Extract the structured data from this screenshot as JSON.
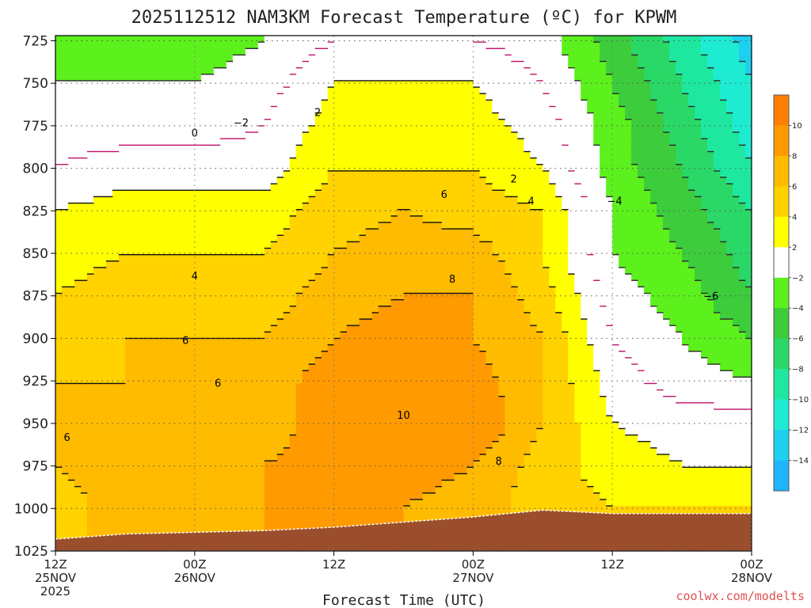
{
  "title": "2025112512 NAM3KM Forecast Temperature (ºC) for KPWM",
  "credit": "coolwx.com/modelts",
  "colors": {
    "lt_m14": "#1fb4ff",
    "m14_m12": "#1ed0f0",
    "m12_m10": "#1eecd2",
    "m10_m8": "#1ee8a0",
    "m8_m6": "#2ad868",
    "m6_m4": "#3ccc3c",
    "m4_m2": "#5cf01c",
    "m2_2": "#ffffff",
    "2_4": "#ffff00",
    "4_6": "#ffd200",
    "6_8": "#ffbb00",
    "8_10": "#ff9a00",
    "10_12": "#ff8000",
    "terrain": "#9b4e2c",
    "zero_line": "#c0106a"
  },
  "chart_data": {
    "type": "heatmap",
    "title": "2025112512 NAM3KM Forecast Temperature (ºC) for KPWM",
    "xlabel": "Forecast Time (UTC)",
    "ylabel": "",
    "x_axis": {
      "min_hour": 0,
      "max_hour": 60,
      "ticks": [
        {
          "hour": 0,
          "lines": [
            "12Z",
            "25NOV",
            "2025"
          ]
        },
        {
          "hour": 12,
          "lines": [
            "00Z",
            "26NOV"
          ]
        },
        {
          "hour": 24,
          "lines": [
            "12Z"
          ]
        },
        {
          "hour": 36,
          "lines": [
            "00Z",
            "27NOV"
          ]
        },
        {
          "hour": 48,
          "lines": [
            "12Z"
          ]
        },
        {
          "hour": 60,
          "lines": [
            "00Z",
            "28NOV"
          ]
        }
      ]
    },
    "y_axis": {
      "unit": "hPa",
      "inverted": true,
      "min": 722,
      "max": 1025,
      "ticks": [
        725,
        750,
        775,
        800,
        825,
        850,
        875,
        900,
        925,
        950,
        975,
        1000,
        1025
      ]
    },
    "grid": true,
    "colorbar": {
      "placement": "right",
      "labels": [
        "10",
        "8",
        "6",
        "4",
        "2",
        "−2",
        "−4",
        "−6",
        "−8",
        "−10",
        "−12",
        "−14"
      ]
    },
    "contour_labels": [
      {
        "text": "0",
        "hour": 12.0,
        "p": 779
      },
      {
        "text": "−2",
        "hour": 16.0,
        "p": 773
      },
      {
        "text": "2",
        "hour": 22.6,
        "p": 767
      },
      {
        "text": "2",
        "hour": 39.5,
        "p": 806
      },
      {
        "text": "4",
        "hour": 41.0,
        "p": 819
      },
      {
        "text": "6",
        "hour": 33.5,
        "p": 815
      },
      {
        "text": "4",
        "hour": 12.0,
        "p": 863
      },
      {
        "text": "8",
        "hour": 34.2,
        "p": 865
      },
      {
        "text": "6",
        "hour": 11.2,
        "p": 901
      },
      {
        "text": "6",
        "hour": 14.0,
        "p": 926
      },
      {
        "text": "6",
        "hour": 1.0,
        "p": 958
      },
      {
        "text": "10",
        "hour": 30.0,
        "p": 945
      },
      {
        "text": "8",
        "hour": 38.2,
        "p": 972
      },
      {
        "text": "−4",
        "hour": 48.2,
        "p": 819
      },
      {
        "text": "−6",
        "hour": 56.5,
        "p": 875
      }
    ],
    "forecast_temperatures_c": {
      "hours": [
        0,
        6,
        12,
        18,
        24,
        30,
        36,
        42,
        48,
        54,
        60
      ],
      "levels": [
        {
          "p": 725,
          "t": [
            -3,
            -3,
            -3,
            -2,
            0,
            0,
            0,
            -1,
            -5,
            -9,
            -13
          ]
        },
        {
          "p": 750,
          "t": [
            -2,
            -2,
            -2,
            -1,
            2,
            2,
            2,
            0,
            -4,
            -8,
            -12
          ]
        },
        {
          "p": 775,
          "t": [
            -1,
            -1,
            -1,
            0,
            3,
            3,
            3,
            1,
            -3,
            -7,
            -11
          ]
        },
        {
          "p": 800,
          "t": [
            0,
            1,
            1,
            1,
            4,
            4,
            4,
            2,
            -3,
            -6,
            -10
          ]
        },
        {
          "p": 825,
          "t": [
            2,
            3,
            3,
            3,
            5,
            6,
            5,
            4,
            -2,
            -5,
            -8
          ]
        },
        {
          "p": 850,
          "t": [
            3,
            4,
            4,
            4,
            6,
            7,
            7,
            4,
            -2,
            -4,
            -7
          ]
        },
        {
          "p": 875,
          "t": [
            4,
            5,
            5,
            5,
            7,
            8,
            8,
            5,
            -1,
            -3,
            -6
          ]
        },
        {
          "p": 900,
          "t": [
            5,
            6,
            6,
            6,
            8,
            9,
            8,
            6,
            0,
            -2,
            -4
          ]
        },
        {
          "p": 925,
          "t": [
            6,
            6,
            7,
            7,
            9,
            10,
            9,
            6,
            1,
            -1,
            -2
          ]
        },
        {
          "p": 950,
          "t": [
            6,
            7,
            7,
            7,
            9,
            10,
            10,
            6,
            2,
            1,
            1
          ]
        },
        {
          "p": 975,
          "t": [
            6,
            7,
            7,
            8,
            9,
            9,
            8,
            5,
            3,
            2,
            2
          ]
        },
        {
          "p": 1000,
          "t": [
            5,
            7,
            7,
            8,
            8,
            8,
            7,
            5,
            4,
            4,
            4
          ]
        }
      ]
    },
    "surface_pressure": {
      "hours": [
        0,
        6,
        12,
        18,
        24,
        30,
        36,
        42,
        48,
        54,
        60
      ],
      "p": [
        1018,
        1015,
        1014,
        1013,
        1011,
        1008,
        1005,
        1001,
        1003,
        1003,
        1003
      ]
    }
  }
}
